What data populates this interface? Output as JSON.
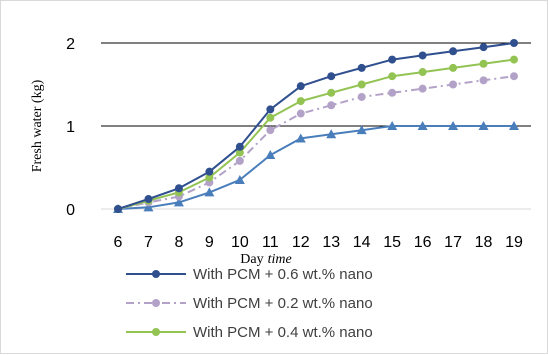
{
  "chart_data": {
    "type": "line",
    "xlabel": "Day",
    "xlabel_italic": "time",
    "ylabel": "Fresh water (kg)",
    "x": [
      6,
      7,
      8,
      9,
      10,
      11,
      12,
      13,
      14,
      15,
      16,
      17,
      18,
      19
    ],
    "ylim": [
      0,
      2
    ],
    "yticks": [
      0,
      1,
      2
    ],
    "grid": "horizontal",
    "legend_position": "bottom",
    "series": [
      {
        "name": "With  PCM + 0.6 wt.% nano",
        "color": "#2f4f8f",
        "marker": "circle",
        "dash": "solid",
        "values": [
          0,
          0.12,
          0.25,
          0.45,
          0.75,
          1.2,
          1.48,
          1.6,
          1.7,
          1.8,
          1.85,
          1.9,
          1.95,
          2.0
        ]
      },
      {
        "name": "With  PCM + 0.2 wt.% nano",
        "color": "#b3a2c7",
        "marker": "circle",
        "dash": "dashdot",
        "values": [
          0,
          0.08,
          0.15,
          0.32,
          0.58,
          0.95,
          1.15,
          1.25,
          1.35,
          1.4,
          1.45,
          1.5,
          1.55,
          1.6
        ]
      },
      {
        "name": "With PCM + 0.4 wt.% nano",
        "color": "#92c353",
        "marker": "circle",
        "dash": "solid",
        "values": [
          0,
          0.1,
          0.2,
          0.38,
          0.68,
          1.1,
          1.3,
          1.4,
          1.5,
          1.6,
          1.65,
          1.7,
          1.75,
          1.8
        ]
      },
      {
        "name": "",
        "color": "#4a7ebb",
        "marker": "triangle",
        "dash": "solid",
        "values": [
          0,
          0.02,
          0.08,
          0.2,
          0.35,
          0.65,
          0.85,
          0.9,
          0.95,
          1.0,
          1.0,
          1.0,
          1.0,
          1.0
        ]
      }
    ]
  }
}
